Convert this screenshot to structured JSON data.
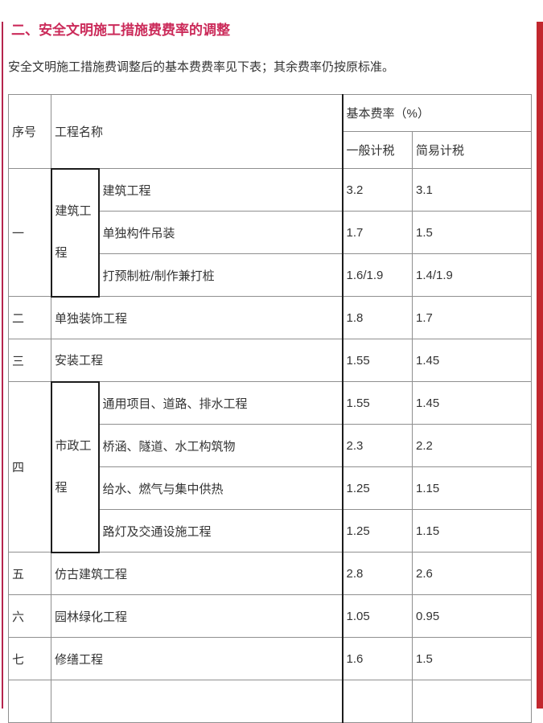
{
  "page": {
    "title": "二、安全文明施工措施费费率的调整",
    "intro": "安全文明施工措施费调整后的基本费费率见下表；其余费率仍按原标准。"
  },
  "colors": {
    "title_accent": "#cb2b5a",
    "left_edge_line": "#b5244c",
    "right_edge_bar": "#c2282e",
    "table_border": "#8f8f8f",
    "table_border_dark": "#1c1c1c",
    "text": "#333333"
  },
  "table": {
    "headers": {
      "index": "序号",
      "name": "工程名称",
      "rate_group": "基本费率（%）",
      "rate_general": "一般计税",
      "rate_simple": "简易计税"
    },
    "groups": [
      {
        "index": "一",
        "category": "建筑工程",
        "items": [
          {
            "name": "建筑工程",
            "general": "3.2",
            "simple": "3.1"
          },
          {
            "name": "单独构件吊装",
            "general": "1.7",
            "simple": "1.5"
          },
          {
            "name": "打预制桩/制作兼打桩",
            "general": "1.6/1.9",
            "simple": "1.4/1.9"
          }
        ]
      },
      {
        "index": "二",
        "category": null,
        "items": [
          {
            "name": "单独装饰工程",
            "general": "1.8",
            "simple": "1.7"
          }
        ]
      },
      {
        "index": "三",
        "category": null,
        "items": [
          {
            "name": "安装工程",
            "general": "1.55",
            "simple": "1.45"
          }
        ]
      },
      {
        "index": "四",
        "category": "市政工程",
        "items": [
          {
            "name": "通用项目、道路、排水工程",
            "general": "1.55",
            "simple": "1.45"
          },
          {
            "name": "桥涵、隧道、水工构筑物",
            "general": "2.3",
            "simple": "2.2"
          },
          {
            "name": "给水、燃气与集中供热",
            "general": "1.25",
            "simple": "1.15"
          },
          {
            "name": "路灯及交通设施工程",
            "general": "1.25",
            "simple": "1.15"
          }
        ]
      },
      {
        "index": "五",
        "category": null,
        "items": [
          {
            "name": "仿古建筑工程",
            "general": "2.8",
            "simple": "2.6"
          }
        ]
      },
      {
        "index": "六",
        "category": null,
        "items": [
          {
            "name": "园林绿化工程",
            "general": "1.05",
            "simple": "0.95"
          }
        ]
      },
      {
        "index": "七",
        "category": null,
        "items": [
          {
            "name": "修缮工程",
            "general": "1.6",
            "simple": "1.5"
          }
        ]
      }
    ]
  }
}
